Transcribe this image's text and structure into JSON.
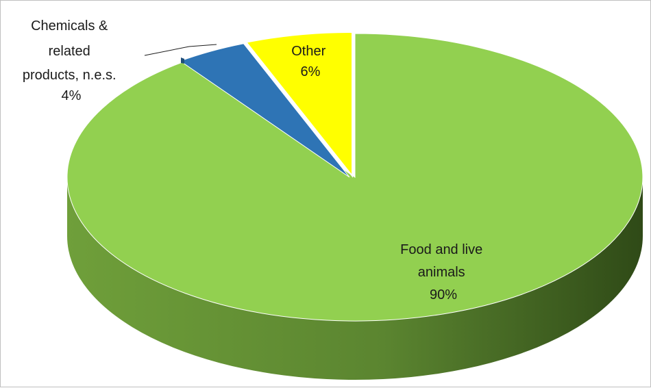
{
  "chart_data": {
    "type": "pie",
    "style": "3d",
    "title": "",
    "legend": "none",
    "slices": [
      {
        "label_lines": [
          "Food and live",
          "animals"
        ],
        "percent_label": "90%",
        "value": 90,
        "color": "#92d050",
        "side_color": "#6f9f3a"
      },
      {
        "label_lines": [
          "Chemicals &",
          "related",
          "products, n.e.s."
        ],
        "percent_label": "4%",
        "value": 4,
        "color": "#2e74b5",
        "side_color": "#1f4e79"
      },
      {
        "label_lines": [
          "Other"
        ],
        "percent_label": "6%",
        "value": 6,
        "color": "#ffff00",
        "side_color": "#bfbf00"
      }
    ]
  }
}
